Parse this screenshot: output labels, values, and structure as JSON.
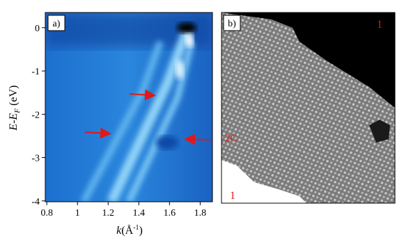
{
  "panel_a": {
    "label": "a)",
    "xlim": [
      0.79,
      1.88
    ],
    "xticks": [
      0.8,
      1.0,
      1.2,
      1.4,
      1.6,
      1.8
    ],
    "ylim": [
      -4.02,
      0.35
    ],
    "yticks": [
      0,
      -1,
      -2,
      -3,
      -4
    ],
    "x_label": [
      "k",
      "(Å",
      "-1",
      ")"
    ],
    "y_label": [
      "E-E",
      "F",
      " (eV)"
    ]
  },
  "panel_b": {
    "label": "b)",
    "annotations": [
      "1",
      "2C",
      "1"
    ]
  }
}
